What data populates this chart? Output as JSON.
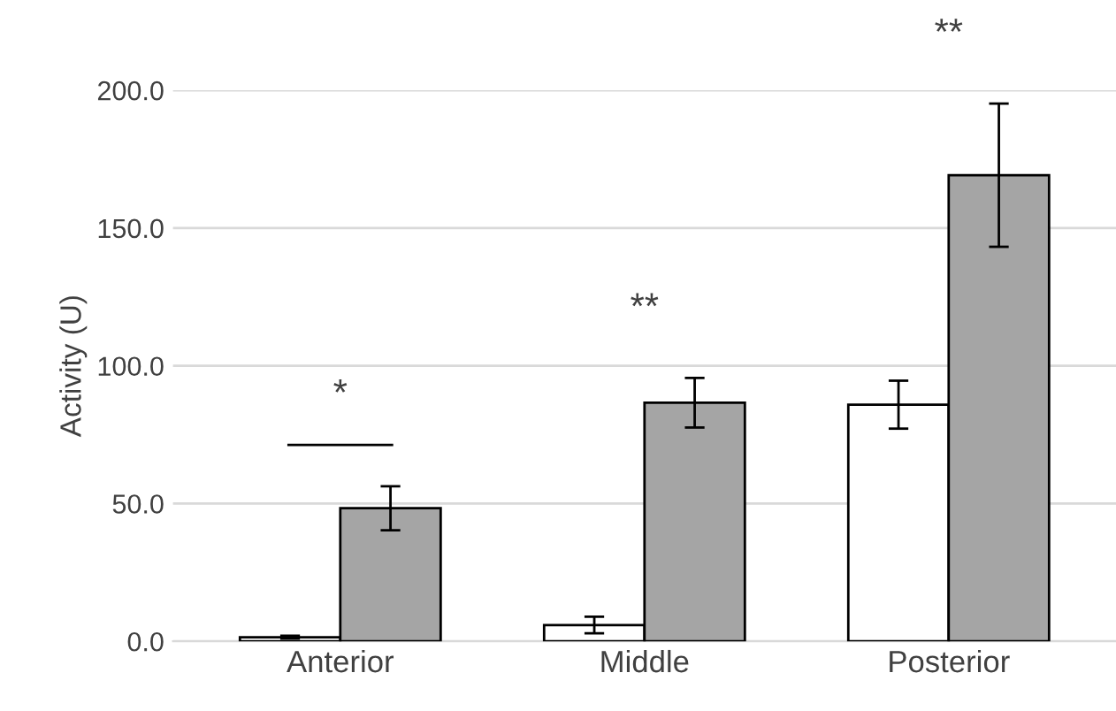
{
  "chart_data": {
    "type": "bar",
    "ylabel": "Activity (U)",
    "categories": [
      "Anterior",
      "Middle",
      "Posterior"
    ],
    "series": [
      {
        "color": "#ffffff",
        "values": [
          1.5,
          5.9,
          85.9
        ],
        "errors": [
          0.5,
          3,
          8.7
        ]
      },
      {
        "color": "#a5a5a5",
        "values": [
          48.3,
          86.6,
          169.2
        ],
        "errors": [
          8,
          9,
          26
        ]
      }
    ],
    "ylim": [
      0,
      200
    ],
    "yticks": [
      {
        "value": 0,
        "label": "0.0"
      },
      {
        "value": 50,
        "label": "50.0"
      },
      {
        "value": 100,
        "label": "100.0"
      },
      {
        "value": 150,
        "label": "150.0"
      },
      {
        "value": 200,
        "label": "200.0"
      }
    ],
    "grid": "y",
    "legend": false,
    "annotations": [
      "*",
      "**",
      "**"
    ]
  }
}
